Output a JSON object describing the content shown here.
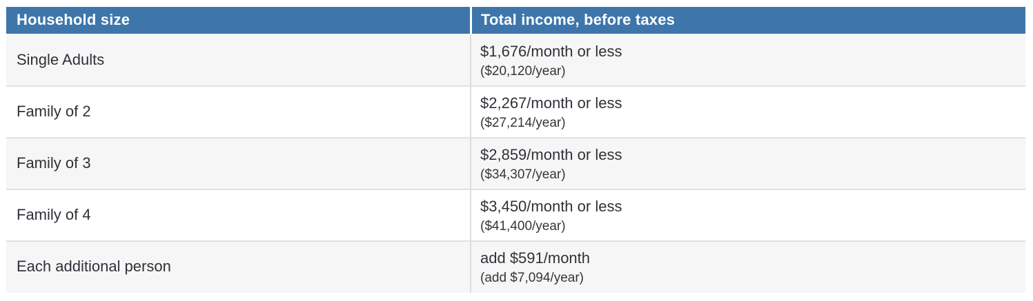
{
  "table": {
    "accent_color": "#3e76ab",
    "stripe_color": "#f6f6f6",
    "divider_color": "#e1e1e1",
    "header": {
      "household": "Household size",
      "income": "Total income, before taxes"
    },
    "rows": [
      {
        "household": "Single Adults",
        "monthly": "$1,676/month or less",
        "yearly": "($20,120/year)"
      },
      {
        "household": "Family of 2",
        "monthly": "$2,267/month or less",
        "yearly": "($27,214/year)"
      },
      {
        "household": "Family of 3",
        "monthly": "$2,859/month or less",
        "yearly": "($34,307/year)"
      },
      {
        "household": "Family of 4",
        "monthly": "$3,450/month or less",
        "yearly": "($41,400/year)"
      },
      {
        "household": "Each additional person",
        "monthly": "add $591/month",
        "yearly": "(add $7,094/year)"
      }
    ]
  },
  "chart_data": {
    "type": "table",
    "title": "",
    "columns": [
      "Household size",
      "Total income, before taxes"
    ],
    "rows": [
      [
        "Single Adults",
        "$1,676/month or less ($20,120/year)"
      ],
      [
        "Family of 2",
        "$2,267/month or less ($27,214/year)"
      ],
      [
        "Family of 3",
        "$2,859/month or less ($34,307/year)"
      ],
      [
        "Family of 4",
        "$3,450/month or less ($41,400/year)"
      ],
      [
        "Each additional person",
        "add $591/month (add $7,094/year)"
      ]
    ]
  }
}
